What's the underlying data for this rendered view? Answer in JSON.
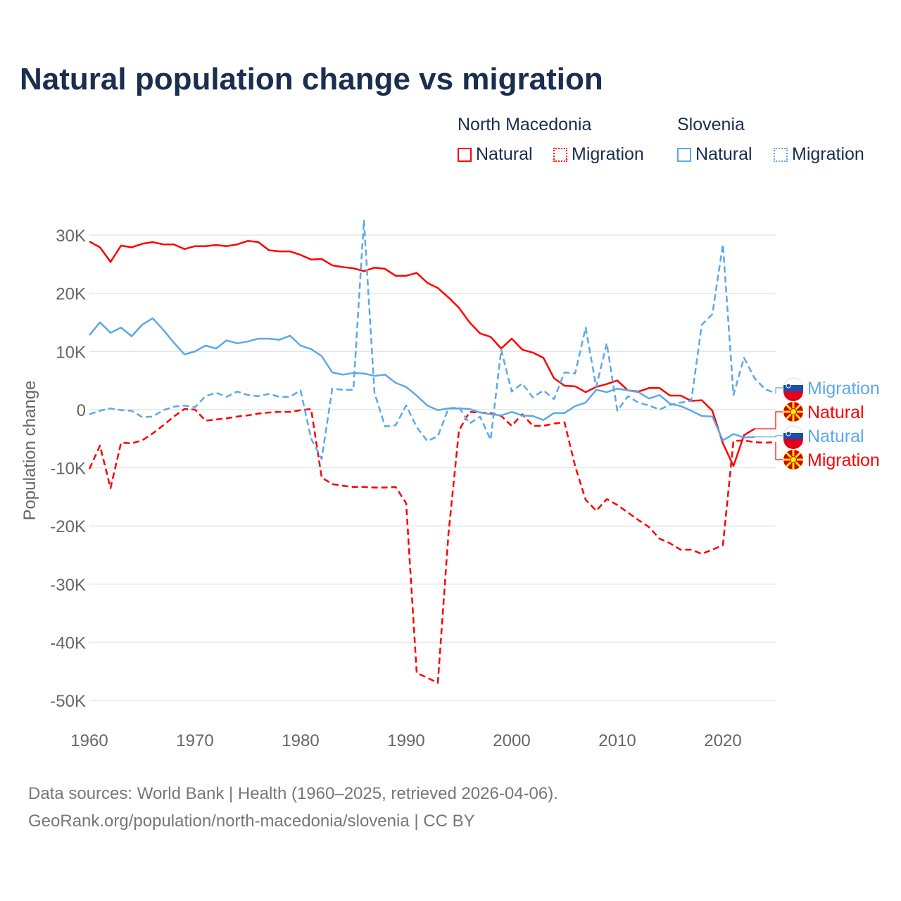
{
  "title": "Natural population change vs migration",
  "legend": {
    "groups": [
      {
        "name": "North Macedonia",
        "items": [
          {
            "label": "Natural",
            "style": "solid"
          },
          {
            "label": "Migration",
            "style": "dotted"
          }
        ],
        "color": "#ff0000"
      },
      {
        "name": "Slovenia",
        "items": [
          {
            "label": "Natural",
            "style": "solid"
          },
          {
            "label": "Migration",
            "style": "dotted"
          }
        ],
        "color": "#5ca8ec"
      }
    ]
  },
  "source": {
    "line1": "Data sources: World Bank | Health (1960–2025, retrieved 2026-04-06).",
    "line2": "GeoRank.org/population/north-macedonia/slovenia | CC BY"
  },
  "chart_data": {
    "type": "line",
    "title": "Natural population change vs migration",
    "xlabel": "",
    "ylabel": "Population change",
    "xlim": [
      1960,
      2025
    ],
    "ylim": [
      -50000,
      30000
    ],
    "xticks": [
      1960,
      1970,
      1980,
      1990,
      2000,
      2010,
      2020
    ],
    "xtick_labels": [
      "1960",
      "1970",
      "1980",
      "1990",
      "2000",
      "2010",
      "2020"
    ],
    "yticks": [
      30000,
      20000,
      10000,
      0,
      -10000,
      -20000,
      -30000,
      -40000,
      -50000
    ],
    "ytick_labels": [
      "30K",
      "20K",
      "10K",
      "0",
      "-10K",
      "-20K",
      "-30K",
      "-40K",
      "-50K"
    ],
    "grid": true,
    "series": [
      {
        "name": "North Macedonia Natural",
        "end_label": "Natural",
        "color": "#ff0000",
        "dash": false,
        "start": 1960,
        "values": [
          28.9,
          27.9,
          25.4,
          28.2,
          27.9,
          28.5,
          28.8,
          28.4,
          28.4,
          27.6,
          28.1,
          28.1,
          28.3,
          28.1,
          28.4,
          29.0,
          28.8,
          27.4,
          27.2,
          27.2,
          26.6,
          25.8,
          25.9,
          24.8,
          24.5,
          24.3,
          23.8,
          24.4,
          24.2,
          23.0,
          23.0,
          23.5,
          21.8,
          20.9,
          19.3,
          17.5,
          15.0,
          13.1,
          12.5,
          10.5,
          12.2,
          10.3,
          9.8,
          8.9,
          5.4,
          4.1,
          4.0,
          3.0,
          3.9,
          4.4,
          5.0,
          3.3,
          3.1,
          3.7,
          3.7,
          2.4,
          2.4,
          1.5,
          1.6,
          -0.2,
          -5.8,
          -9.7,
          -4.4,
          -3.3
        ]
      },
      {
        "name": "North Macedonia Migration",
        "end_label": "Migration",
        "color": "#ff0000",
        "dash": true,
        "start": 1960,
        "values": [
          -10.2,
          -6.2,
          -13.5,
          -5.7,
          -5.8,
          -5.3,
          -4.1,
          -2.7,
          -1.2,
          0.1,
          0,
          -1.9,
          -1.7,
          -1.5,
          -1.2,
          -1.0,
          -0.7,
          -0.5,
          -0.4,
          -0.4,
          -0.1,
          0.1,
          -11.7,
          -12.8,
          -13.1,
          -13.3,
          -13.3,
          -13.4,
          -13.4,
          -13.3,
          -16.1,
          -45.3,
          -46.1,
          -47.0,
          -21.5,
          -3.6,
          -0.4,
          -0.5,
          -0.6,
          -1.1,
          -2.8,
          -0.8,
          -2.8,
          -2.8,
          -2.4,
          -2.2,
          -9.7,
          -15.5,
          -17.4,
          -15.4,
          -16.4,
          -17.7,
          -19.0,
          -20.2,
          -22.2,
          -23.0,
          -24.1,
          -24.1,
          -24.8,
          -24.1,
          -23.3,
          -5.4,
          -5.3,
          -5.6,
          -5.7,
          -5.6
        ]
      },
      {
        "name": "Slovenia Natural",
        "end_label": "Natural",
        "color": "#5ca8ec",
        "dash": false,
        "start": 1960,
        "values": [
          12.8,
          15.0,
          13.2,
          14.1,
          12.6,
          14.6,
          15.7,
          13.7,
          11.5,
          9.5,
          10.0,
          11.0,
          10.5,
          11.9,
          11.4,
          11.7,
          12.2,
          12.2,
          12.0,
          12.7,
          11.0,
          10.4,
          9.2,
          6.4,
          6.0,
          6.3,
          6.2,
          5.8,
          6.0,
          4.6,
          3.9,
          2.4,
          0.7,
          -0.1,
          0.2,
          0.2,
          0.1,
          -0.5,
          -0.8,
          -1.0,
          -0.4,
          -1.0,
          -1.1,
          -1.8,
          -0.6,
          -0.6,
          0.6,
          1.2,
          3.4,
          3.0,
          3.6,
          3.3,
          3.0,
          1.9,
          2.5,
          1.0,
          0.6,
          -0.2,
          -1.1,
          -1.2,
          -5.3,
          -4.2,
          -4.8,
          -4.7
        ]
      },
      {
        "name": "Slovenia Migration",
        "end_label": "Migration",
        "color": "#5ca8ec",
        "dash": true,
        "start": 1960,
        "values": [
          -0.8,
          -0.2,
          0.2,
          -0.1,
          -0.2,
          -1.3,
          -1.2,
          -0.1,
          0.5,
          0.7,
          0.4,
          2.3,
          2.9,
          2.2,
          3.1,
          2.5,
          2.3,
          2.7,
          2.2,
          2.2,
          3.3,
          -5.0,
          -8.5,
          3.6,
          3.4,
          3.4,
          32.6,
          2.9,
          -2.9,
          -2.7,
          0.7,
          -3.0,
          -5.4,
          -4.6,
          0.2,
          0.4,
          -2.4,
          -1.2,
          -5.2,
          10.3,
          3.1,
          4.5,
          2.1,
          3.3,
          1.8,
          6.4,
          6.2,
          14.1,
          3.9,
          11.4,
          -0.2,
          2.3,
          1.2,
          0.7,
          0.0,
          0.8,
          1.2,
          1.5,
          14.6,
          16.4,
          28.4,
          2.5,
          8.9,
          5.4,
          3.5,
          2.8
        ]
      }
    ],
    "value_unit": "thousands"
  }
}
